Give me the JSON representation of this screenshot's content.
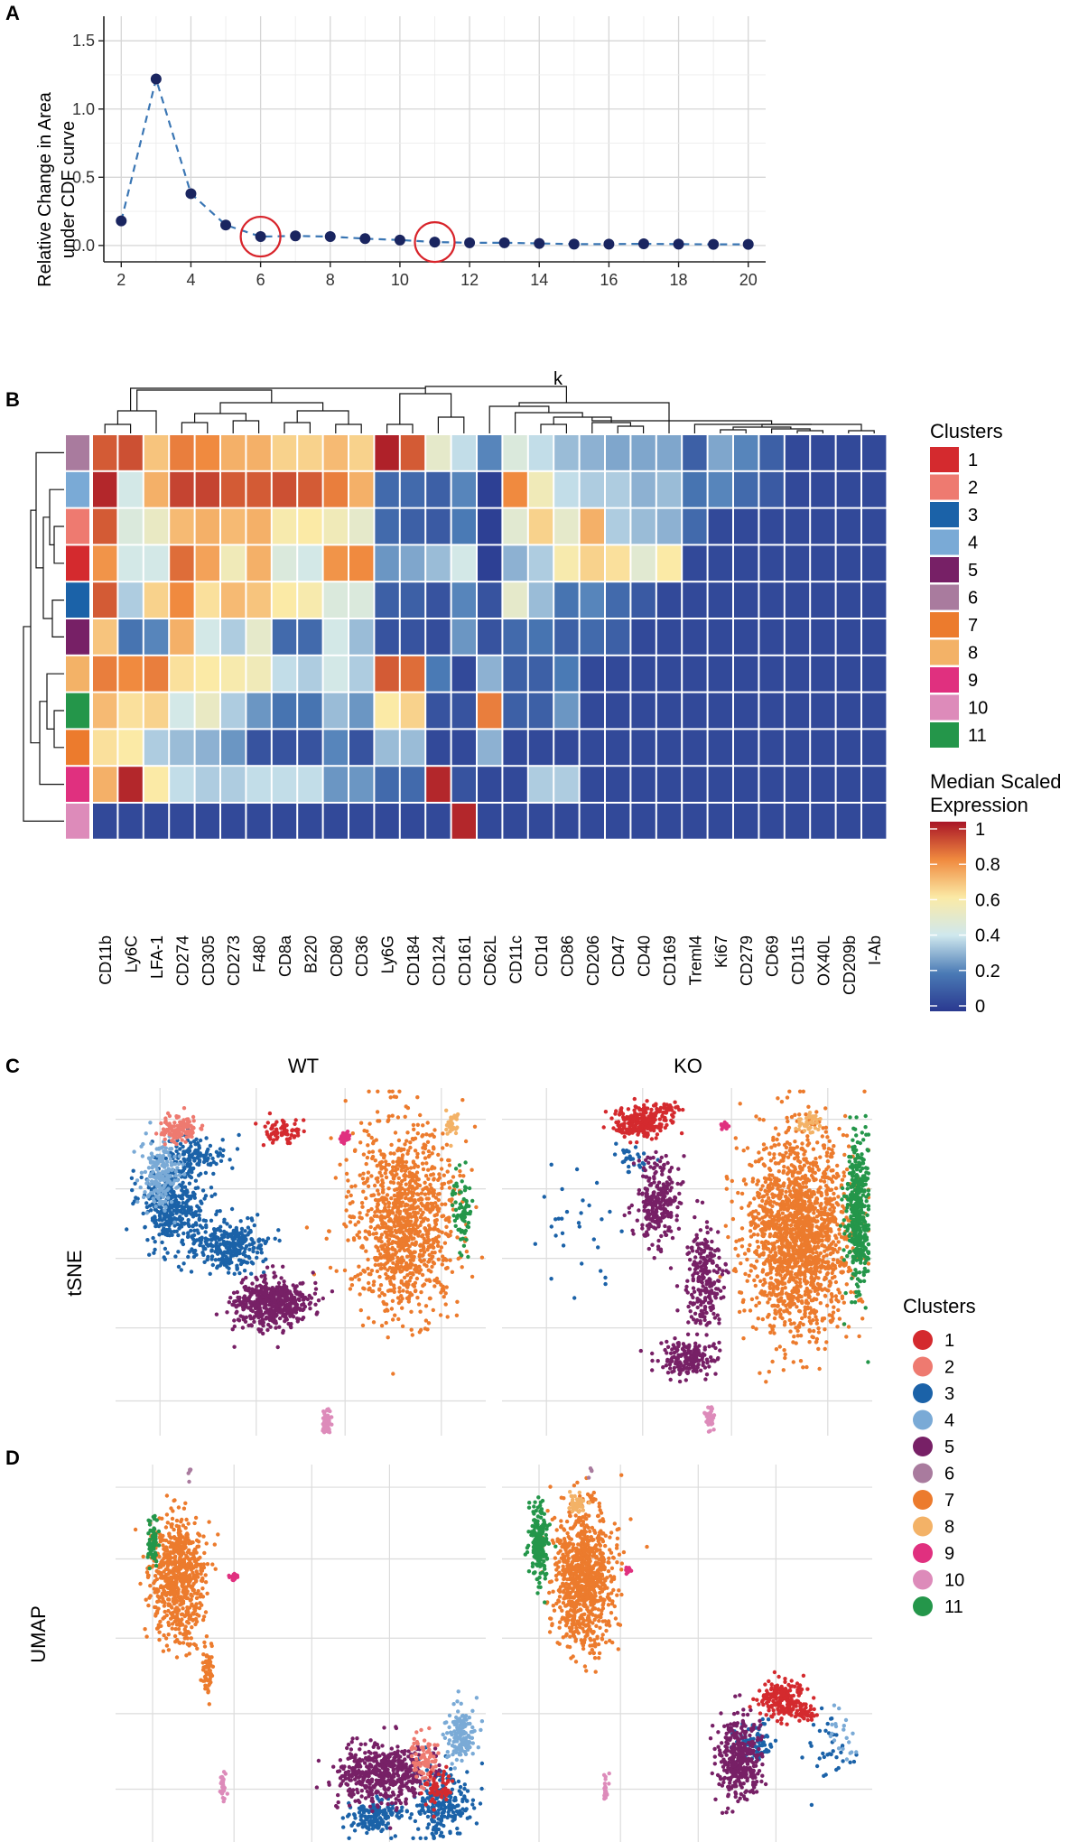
{
  "colors": {
    "clusters": [
      "#d42a2e",
      "#ee7a70",
      "#1b62a8",
      "#7aaad6",
      "#772066",
      "#a97b9e",
      "#ec7b2d",
      "#f3b267",
      "#e0307f",
      "#dd8bba",
      "#24964a"
    ],
    "line": "#3a76b4",
    "dot": "#1a2560",
    "circle": "#d8232a",
    "grid": "#dcdcdc"
  },
  "panelA": {
    "label": "A",
    "chart_data": {
      "type": "line",
      "title": "",
      "xlabel": "k",
      "ylabel": "Relative Change in Area under CDF curve",
      "ylabel_lines": [
        "Relative Change in Area",
        "under CDF curve"
      ],
      "x": [
        2,
        3,
        4,
        5,
        6,
        7,
        8,
        9,
        10,
        11,
        12,
        13,
        14,
        15,
        16,
        17,
        18,
        19,
        20
      ],
      "y": [
        0.18,
        1.22,
        0.38,
        0.15,
        0.065,
        0.07,
        0.065,
        0.05,
        0.04,
        0.025,
        0.02,
        0.02,
        0.015,
        0.01,
        0.01,
        0.012,
        0.01,
        0.008,
        0.008
      ],
      "xlim": [
        1.5,
        20.5
      ],
      "ylim": [
        -0.12,
        1.68
      ],
      "xticks": [
        "2",
        "4",
        "6",
        "8",
        "10",
        "12",
        "14",
        "16",
        "18",
        "20"
      ],
      "yticks": [
        "0.0",
        "0.5",
        "1.0",
        "1.5"
      ],
      "highlight_k": [
        6,
        11
      ]
    }
  },
  "panelB": {
    "label": "B",
    "chart_data": {
      "type": "heatmap",
      "markers": [
        "CD11b",
        "Ly6C",
        "LFA-1",
        "CD274",
        "CD305",
        "CD273",
        "F480",
        "CD8a",
        "B220",
        "CD80",
        "CD36",
        "Ly6G",
        "CD184",
        "CD124",
        "CD161",
        "CD62L",
        "CD11c",
        "CD1d",
        "CD86",
        "CD206",
        "CD47",
        "CD40",
        "CD169",
        "Treml4",
        "Ki67",
        "CD279",
        "CD69",
        "CD115",
        "OX40L",
        "CD209b",
        "I-Ab"
      ],
      "row_clusters": [
        6,
        4,
        2,
        1,
        3,
        5,
        8,
        11,
        7,
        9,
        10
      ],
      "values": [
        [
          0.88,
          0.9,
          0.68,
          0.82,
          0.8,
          0.72,
          0.72,
          0.65,
          0.65,
          0.7,
          0.65,
          0.98,
          0.88,
          0.5,
          0.38,
          0.22,
          0.45,
          0.38,
          0.32,
          0.3,
          0.28,
          0.28,
          0.28,
          0.12,
          0.28,
          0.22,
          0.12,
          0.05,
          0.05,
          0.05,
          0.05
        ],
        [
          0.97,
          0.42,
          0.72,
          0.92,
          0.92,
          0.88,
          0.88,
          0.9,
          0.88,
          0.82,
          0.72,
          0.15,
          0.15,
          0.12,
          0.22,
          0.02,
          0.8,
          0.55,
          0.38,
          0.35,
          0.35,
          0.3,
          0.32,
          0.18,
          0.22,
          0.15,
          0.1,
          0.05,
          0.05,
          0.05,
          0.05
        ],
        [
          0.88,
          0.45,
          0.52,
          0.7,
          0.72,
          0.7,
          0.72,
          0.58,
          0.6,
          0.55,
          0.5,
          0.15,
          0.12,
          0.1,
          0.2,
          0.02,
          0.48,
          0.65,
          0.5,
          0.72,
          0.35,
          0.32,
          0.3,
          0.15,
          0.05,
          0.05,
          0.05,
          0.05,
          0.05,
          0.05,
          0.05
        ],
        [
          0.78,
          0.42,
          0.42,
          0.85,
          0.75,
          0.55,
          0.72,
          0.45,
          0.42,
          0.78,
          0.8,
          0.25,
          0.28,
          0.32,
          0.42,
          0.02,
          0.3,
          0.35,
          0.58,
          0.65,
          0.62,
          0.48,
          0.6,
          0.05,
          0.05,
          0.05,
          0.05,
          0.05,
          0.05,
          0.05,
          0.05
        ],
        [
          0.88,
          0.35,
          0.65,
          0.8,
          0.62,
          0.7,
          0.68,
          0.6,
          0.58,
          0.45,
          0.45,
          0.12,
          0.12,
          0.08,
          0.22,
          0.08,
          0.5,
          0.32,
          0.18,
          0.22,
          0.15,
          0.1,
          0.05,
          0.05,
          0.05,
          0.05,
          0.05,
          0.05,
          0.05,
          0.05,
          0.05
        ],
        [
          0.68,
          0.18,
          0.22,
          0.72,
          0.42,
          0.35,
          0.5,
          0.15,
          0.15,
          0.42,
          0.32,
          0.08,
          0.08,
          0.06,
          0.25,
          0.08,
          0.15,
          0.18,
          0.12,
          0.15,
          0.12,
          0.05,
          0.05,
          0.05,
          0.05,
          0.05,
          0.05,
          0.05,
          0.05,
          0.05,
          0.05
        ],
        [
          0.82,
          0.8,
          0.82,
          0.62,
          0.6,
          0.58,
          0.55,
          0.38,
          0.35,
          0.42,
          0.35,
          0.88,
          0.85,
          0.2,
          0.05,
          0.3,
          0.12,
          0.12,
          0.2,
          0.05,
          0.05,
          0.05,
          0.05,
          0.05,
          0.05,
          0.05,
          0.05,
          0.05,
          0.05,
          0.05,
          0.05
        ],
        [
          0.7,
          0.62,
          0.65,
          0.42,
          0.52,
          0.35,
          0.25,
          0.18,
          0.18,
          0.32,
          0.25,
          0.6,
          0.65,
          0.08,
          0.08,
          0.82,
          0.12,
          0.12,
          0.25,
          0.05,
          0.05,
          0.05,
          0.05,
          0.05,
          0.05,
          0.05,
          0.05,
          0.05,
          0.05,
          0.05,
          0.05
        ],
        [
          0.62,
          0.6,
          0.35,
          0.32,
          0.3,
          0.25,
          0.08,
          0.08,
          0.08,
          0.22,
          0.08,
          0.32,
          0.32,
          0.05,
          0.05,
          0.3,
          0.05,
          0.05,
          0.05,
          0.05,
          0.05,
          0.05,
          0.05,
          0.05,
          0.05,
          0.05,
          0.05,
          0.05,
          0.05,
          0.05,
          0.05
        ],
        [
          0.72,
          0.97,
          0.6,
          0.38,
          0.35,
          0.35,
          0.38,
          0.38,
          0.38,
          0.25,
          0.25,
          0.15,
          0.15,
          0.97,
          0.08,
          0.05,
          0.05,
          0.35,
          0.35,
          0.05,
          0.05,
          0.05,
          0.05,
          0.05,
          0.05,
          0.05,
          0.05,
          0.05,
          0.05,
          0.05,
          0.05
        ],
        [
          0.05,
          0.05,
          0.05,
          0.05,
          0.05,
          0.05,
          0.05,
          0.05,
          0.05,
          0.05,
          0.05,
          0.05,
          0.05,
          0.05,
          0.97,
          0.05,
          0.05,
          0.05,
          0.05,
          0.05,
          0.05,
          0.05,
          0.05,
          0.05,
          0.05,
          0.05,
          0.05,
          0.05,
          0.05,
          0.05,
          0.05
        ]
      ],
      "range": [
        0,
        1
      ]
    },
    "clusters_legend_title": "Clusters",
    "cluster_labels": [
      "1",
      "2",
      "3",
      "4",
      "5",
      "6",
      "7",
      "8",
      "9",
      "10",
      "11"
    ],
    "expr_legend_title_lines": [
      "Median Scaled",
      "Expression"
    ],
    "expr_ticks": [
      "1",
      "0.8",
      "0.6",
      "0.4",
      "0.2",
      "0"
    ]
  },
  "panelC": {
    "label": "C",
    "row_label": "tSNE",
    "col_labels": [
      "WT",
      "KO"
    ],
    "chart_data": {
      "type": "scatter",
      "description_note": "tSNE embedding coloured by cluster",
      "clusters": [
        {
          "id": 1,
          "wt": [
            [
              0.45,
              0.12,
              0.05,
              0.04,
              70
            ]
          ],
          "ko": [
            [
              0.37,
              0.1,
              0.07,
              0.05,
              220
            ],
            [
              0.45,
              0.06,
              0.03,
              0.02,
              40
            ]
          ]
        },
        {
          "id": 2,
          "wt": [
            [
              0.17,
              0.12,
              0.05,
              0.04,
              120
            ]
          ],
          "ko": []
        },
        {
          "id": 3,
          "wt": [
            [
              0.15,
              0.33,
              0.08,
              0.12,
              380
            ],
            [
              0.3,
              0.45,
              0.1,
              0.08,
              300
            ],
            [
              0.22,
              0.2,
              0.08,
              0.06,
              120
            ]
          ],
          "ko": [
            [
              0.2,
              0.38,
              0.12,
              0.18,
              30
            ],
            [
              0.35,
              0.2,
              0.04,
              0.04,
              30
            ]
          ]
        },
        {
          "id": 4,
          "wt": [
            [
              0.12,
              0.25,
              0.05,
              0.1,
              180
            ]
          ],
          "ko": []
        },
        {
          "id": 5,
          "wt": [
            [
              0.42,
              0.62,
              0.1,
              0.07,
              500
            ]
          ],
          "ko": [
            [
              0.42,
              0.32,
              0.06,
              0.12,
              260
            ],
            [
              0.55,
              0.55,
              0.05,
              0.15,
              230
            ],
            [
              0.5,
              0.78,
              0.08,
              0.05,
              180
            ]
          ]
        },
        {
          "id": 6,
          "wt": [],
          "ko": []
        },
        {
          "id": 7,
          "wt": [
            [
              0.78,
              0.38,
              0.14,
              0.27,
              1100
            ]
          ],
          "ko": [
            [
              0.8,
              0.42,
              0.14,
              0.28,
              1700
            ]
          ]
        },
        {
          "id": 8,
          "wt": [
            [
              0.91,
              0.1,
              0.02,
              0.04,
              30
            ]
          ],
          "ko": [
            [
              0.83,
              0.1,
              0.03,
              0.03,
              40
            ]
          ]
        },
        {
          "id": 9,
          "wt": [
            [
              0.62,
              0.14,
              0.015,
              0.015,
              40
            ]
          ],
          "ko": [
            [
              0.6,
              0.11,
              0.01,
              0.01,
              15
            ]
          ]
        },
        {
          "id": 10,
          "wt": [
            [
              0.57,
              0.96,
              0.012,
              0.04,
              60
            ]
          ],
          "ko": [
            [
              0.56,
              0.95,
              0.012,
              0.03,
              40
            ]
          ]
        },
        {
          "id": 11,
          "wt": [
            [
              0.94,
              0.35,
              0.03,
              0.1,
              70
            ]
          ],
          "ko": [
            [
              0.96,
              0.36,
              0.03,
              0.2,
              450
            ]
          ]
        }
      ]
    }
  },
  "panelD": {
    "label": "D",
    "row_label": "UMAP",
    "chart_data": {
      "type": "scatter",
      "description_note": "UMAP embedding coloured by cluster",
      "clusters": [
        {
          "id": 1,
          "wt": [
            [
              0.87,
              0.85,
              0.05,
              0.05,
              60
            ]
          ],
          "ko": [
            [
              0.76,
              0.62,
              0.06,
              0.05,
              200
            ],
            [
              0.82,
              0.66,
              0.03,
              0.02,
              40
            ]
          ]
        },
        {
          "id": 2,
          "wt": [
            [
              0.84,
              0.78,
              0.04,
              0.06,
              80
            ]
          ],
          "ko": []
        },
        {
          "id": 3,
          "wt": [
            [
              0.88,
              0.9,
              0.08,
              0.1,
              250
            ],
            [
              0.7,
              0.93,
              0.07,
              0.04,
              150
            ]
          ],
          "ko": [
            [
              0.68,
              0.74,
              0.05,
              0.06,
              80
            ],
            [
              0.88,
              0.75,
              0.07,
              0.1,
              35
            ]
          ]
        },
        {
          "id": 4,
          "wt": [
            [
              0.93,
              0.72,
              0.04,
              0.08,
              140
            ]
          ],
          "ko": [
            [
              0.92,
              0.72,
              0.06,
              0.08,
              20
            ]
          ]
        },
        {
          "id": 5,
          "wt": [
            [
              0.72,
              0.82,
              0.12,
              0.08,
              500
            ]
          ],
          "ko": [
            [
              0.64,
              0.78,
              0.06,
              0.1,
              380
            ]
          ]
        },
        {
          "id": 6,
          "wt": [
            [
              0.2,
              0.02,
              0.005,
              0.02,
              5
            ]
          ],
          "ko": [
            [
              0.24,
              0.02,
              0.005,
              0.02,
              4
            ]
          ]
        },
        {
          "id": 7,
          "wt": [
            [
              0.17,
              0.3,
              0.07,
              0.17,
              700
            ],
            [
              0.25,
              0.55,
              0.015,
              0.08,
              60
            ]
          ],
          "ko": [
            [
              0.22,
              0.3,
              0.08,
              0.18,
              900
            ]
          ]
        },
        {
          "id": 8,
          "wt": [],
          "ko": [
            [
              0.2,
              0.1,
              0.02,
              0.03,
              40
            ]
          ]
        },
        {
          "id": 9,
          "wt": [
            [
              0.32,
              0.3,
              0.01,
              0.01,
              25
            ]
          ],
          "ko": [
            [
              0.34,
              0.28,
              0.01,
              0.008,
              15
            ]
          ]
        },
        {
          "id": 10,
          "wt": [
            [
              0.29,
              0.86,
              0.008,
              0.04,
              30
            ]
          ],
          "ko": [
            [
              0.28,
              0.86,
              0.008,
              0.04,
              20
            ]
          ]
        },
        {
          "id": 11,
          "wt": [
            [
              0.1,
              0.2,
              0.015,
              0.07,
              60
            ]
          ],
          "ko": [
            [
              0.1,
              0.2,
              0.025,
              0.1,
              200
            ]
          ]
        }
      ]
    }
  },
  "cd_legend": {
    "title": "Clusters",
    "labels": [
      "1",
      "2",
      "3",
      "4",
      "5",
      "6",
      "7",
      "8",
      "9",
      "10",
      "11"
    ]
  }
}
